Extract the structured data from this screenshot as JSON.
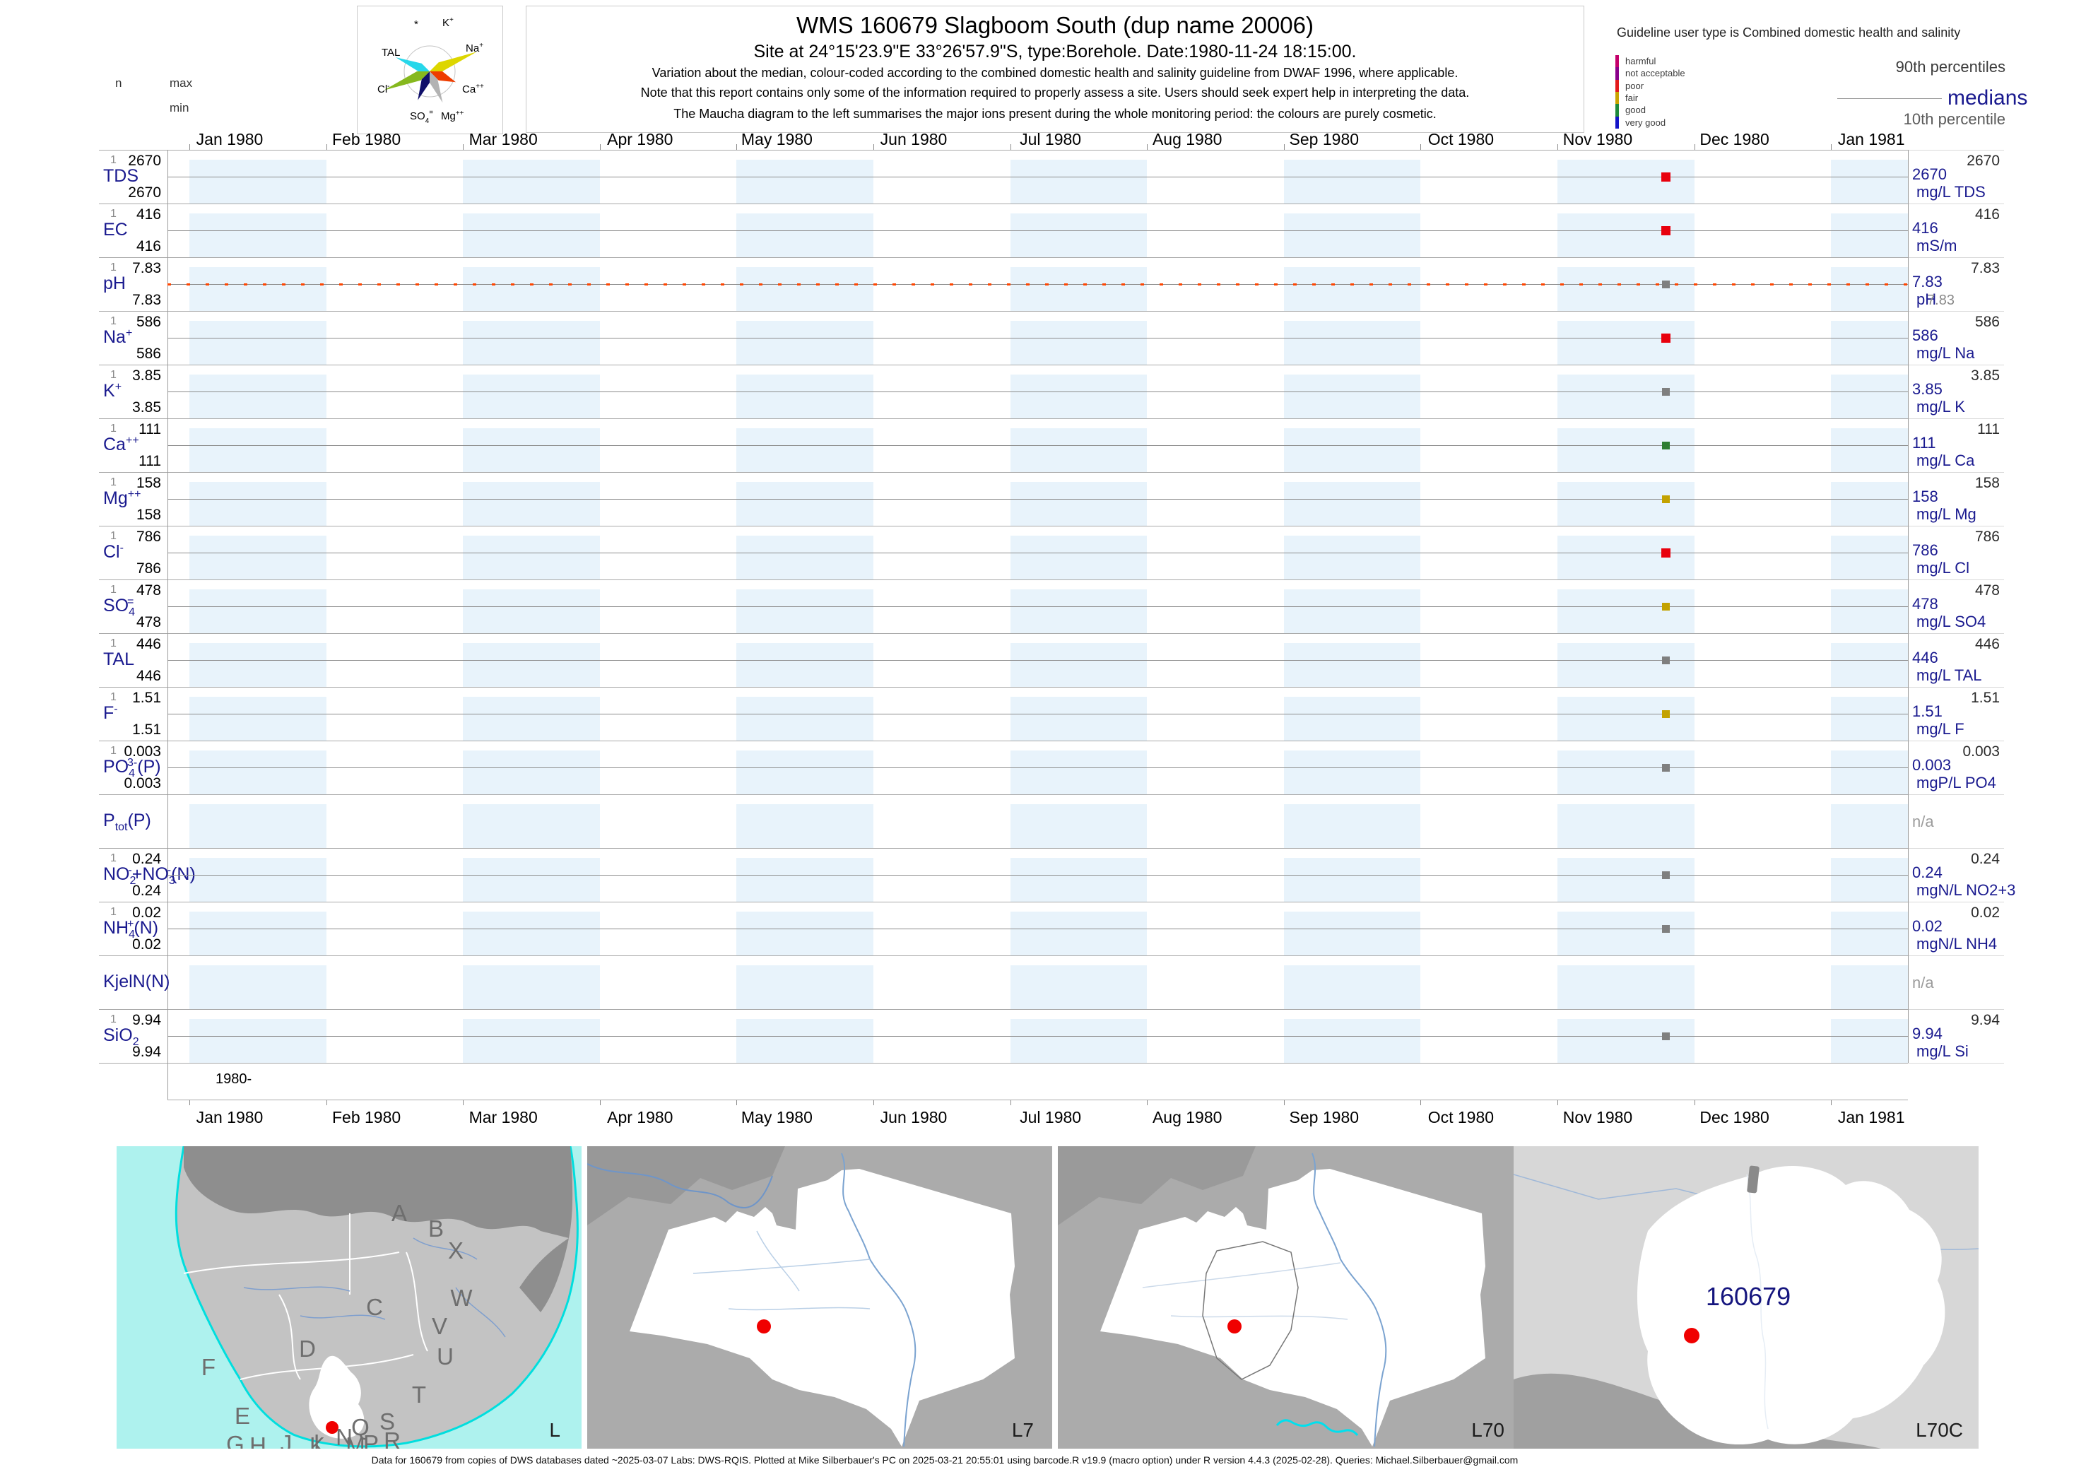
{
  "header": {
    "title": "WMS 160679  Slagboom South (dup name 20006)",
    "subtitle": "Site at 24°15'23.9\"E 33°26'57.9\"S, type:Borehole. Date:1980-11-24 18:15:00.",
    "note1": "Variation about the median,  colour-coded according to the combined domestic health and salinity guideline from DWAF 1996, where applicable.",
    "note2": "Note that this report contains only some of the information required to properly assess a site. Users should seek expert help in interpreting the data.",
    "note3": "The Maucha diagram to the left summarises the major ions present during the whole monitoring period: the colours are purely cosmetic.",
    "col_n": "n",
    "col_max": "max",
    "col_min": "min",
    "maucha_labels": {
      "star": "*",
      "k": "K+",
      "tal": "TAL",
      "na": "Na+",
      "cl": "Cl-",
      "ca": "Ca++",
      "so4": "SO4=",
      "mg": "Mg++"
    },
    "guideline": {
      "heading": "Guideline user type is Combined domestic health and salinity",
      "classes": [
        {
          "label": "harmful",
          "color": "#c4006b"
        },
        {
          "label": "not acceptable",
          "color": "#8a008a"
        },
        {
          "label": "poor",
          "color": "#e31a1c"
        },
        {
          "label": "fair",
          "color": "#c9a400"
        },
        {
          "label": "good",
          "color": "#1e8b3c"
        },
        {
          "label": "very good",
          "color": "#1414c8"
        }
      ],
      "p90_label": "90th percentiles",
      "median_label": "medians",
      "p10_label": "10th percentile"
    }
  },
  "axis": {
    "months": [
      "Jan 1980",
      "Feb 1980",
      "Mar 1980",
      "Apr 1980",
      "May 1980",
      "Jun 1980",
      "Jul 1980",
      "Aug 1980",
      "Sep 1980",
      "Oct 1980",
      "Nov 1980",
      "Dec 1980",
      "Jan 1981"
    ],
    "year_label": "1980-"
  },
  "rows": [
    {
      "name": [
        [
          "TDS",
          "b"
        ]
      ],
      "n": "1",
      "max": "2670",
      "min": "2670",
      "p90": "2670",
      "median": "2670",
      "unit": "mg/L TDS",
      "p10": "",
      "na": false,
      "marker": "#e8000d",
      "big": true,
      "ph": false
    },
    {
      "name": [
        [
          "EC",
          "b"
        ]
      ],
      "n": "1",
      "max": "416",
      "min": "416",
      "p90": "416",
      "median": "416",
      "unit": "mS/m",
      "p10": "",
      "na": false,
      "marker": "#e8000d",
      "big": true,
      "ph": false
    },
    {
      "name": [
        [
          "pH",
          "b"
        ]
      ],
      "n": "1",
      "max": "7.83",
      "min": "7.83",
      "p90": "7.83",
      "median": "7.83",
      "unit": "pH",
      "p10": "7.83",
      "na": false,
      "marker": "#7f7f7f",
      "big": false,
      "ph": true
    },
    {
      "name": [
        [
          "Na",
          "b"
        ],
        [
          "+",
          "u"
        ]
      ],
      "n": "1",
      "max": "586",
      "min": "586",
      "p90": "586",
      "median": "586",
      "unit": "mg/L Na",
      "p10": "",
      "na": false,
      "marker": "#e8000d",
      "big": true,
      "ph": false
    },
    {
      "name": [
        [
          "K",
          "b"
        ],
        [
          "+",
          "u"
        ]
      ],
      "n": "1",
      "max": "3.85",
      "min": "3.85",
      "p90": "3.85",
      "median": "3.85",
      "unit": "mg/L K",
      "p10": "",
      "na": false,
      "marker": "#7f7f7f",
      "big": false,
      "ph": false
    },
    {
      "name": [
        [
          "Ca",
          "b"
        ],
        [
          "++",
          "u"
        ]
      ],
      "n": "1",
      "max": "111",
      "min": "111",
      "p90": "111",
      "median": "111",
      "unit": "mg/L Ca",
      "p10": "",
      "na": false,
      "marker": "#2e7d32",
      "big": false,
      "ph": false
    },
    {
      "name": [
        [
          "Mg",
          "b"
        ],
        [
          "++",
          "u"
        ]
      ],
      "n": "1",
      "max": "158",
      "min": "158",
      "p90": "158",
      "median": "158",
      "unit": "mg/L Mg",
      "p10": "",
      "na": false,
      "marker": "#c3a200",
      "big": false,
      "ph": false
    },
    {
      "name": [
        [
          "Cl",
          "b"
        ],
        [
          "-",
          "u"
        ]
      ],
      "n": "1",
      "max": "786",
      "min": "786",
      "p90": "786",
      "median": "786",
      "unit": "mg/L Cl",
      "p10": "",
      "na": false,
      "marker": "#e8000d",
      "big": true,
      "ph": false
    },
    {
      "name": [
        [
          "SO",
          "b"
        ],
        [
          "4",
          "d"
        ],
        [
          "=",
          "o"
        ]
      ],
      "n": "1",
      "max": "478",
      "min": "478",
      "p90": "478",
      "median": "478",
      "unit": "mg/L SO4",
      "p10": "",
      "na": false,
      "marker": "#c3a200",
      "big": false,
      "ph": false
    },
    {
      "name": [
        [
          "TAL",
          "b"
        ]
      ],
      "n": "1",
      "max": "446",
      "min": "446",
      "p90": "446",
      "median": "446",
      "unit": "mg/L TAL",
      "p10": "",
      "na": false,
      "marker": "#7f7f7f",
      "big": false,
      "ph": false
    },
    {
      "name": [
        [
          "F",
          "b"
        ],
        [
          "-",
          "u"
        ]
      ],
      "n": "1",
      "max": "1.51",
      "min": "1.51",
      "p90": "1.51",
      "median": "1.51",
      "unit": "mg/L F",
      "p10": "",
      "na": false,
      "marker": "#c3a200",
      "big": false,
      "ph": false
    },
    {
      "name": [
        [
          "PO",
          "b"
        ],
        [
          "4",
          "d"
        ],
        [
          "3-",
          "o"
        ],
        [
          "(P)",
          "b"
        ]
      ],
      "n": "1",
      "max": "0.003",
      "min": "0.003",
      "p90": "0.003",
      "median": "0.003",
      "unit": "mgP/L PO4",
      "p10": "",
      "na": false,
      "marker": "#7f7f7f",
      "big": false,
      "ph": false
    },
    {
      "name": [
        [
          "P",
          "b"
        ],
        [
          "tot",
          "d"
        ],
        [
          "(P)",
          "b"
        ]
      ],
      "n": "",
      "max": "",
      "min": "",
      "p90": "",
      "median": "",
      "unit": "",
      "p10": "",
      "na": true,
      "marker": "",
      "big": false,
      "ph": false
    },
    {
      "name": [
        [
          "NO",
          "b"
        ],
        [
          "2",
          "d"
        ],
        [
          "-",
          "o"
        ],
        [
          "+NO",
          "b"
        ],
        [
          "3",
          "d"
        ],
        [
          "-",
          "o"
        ],
        [
          "(N)",
          "b"
        ]
      ],
      "n": "1",
      "max": "0.24",
      "min": "0.24",
      "p90": "0.24",
      "median": "0.24",
      "unit": "mgN/L NO2+3",
      "p10": "",
      "na": false,
      "marker": "#7f7f7f",
      "big": false,
      "ph": false
    },
    {
      "name": [
        [
          "NH",
          "b"
        ],
        [
          "4",
          "d"
        ],
        [
          "+",
          "o"
        ],
        [
          "(N)",
          "b"
        ]
      ],
      "n": "1",
      "max": "0.02",
      "min": "0.02",
      "p90": "0.02",
      "median": "0.02",
      "unit": "mgN/L NH4",
      "p10": "",
      "na": false,
      "marker": "#7f7f7f",
      "big": false,
      "ph": false
    },
    {
      "name": [
        [
          "KjelN(N)",
          "b"
        ]
      ],
      "n": "",
      "max": "",
      "min": "",
      "p90": "",
      "median": "",
      "unit": "",
      "p10": "",
      "na": true,
      "marker": "",
      "big": false,
      "ph": false
    },
    {
      "name": [
        [
          "SiO",
          "b"
        ],
        [
          "2",
          "d"
        ]
      ],
      "n": "1",
      "max": "9.94",
      "min": "9.94",
      "p90": "9.94",
      "median": "9.94",
      "unit": "mg/L Si",
      "p10": "",
      "na": false,
      "marker": "#7f7f7f",
      "big": false,
      "ph": false
    }
  ],
  "na_text": "n/a",
  "maps": [
    {
      "label": "L",
      "letters": [
        "A",
        "B",
        "X",
        "C",
        "W",
        "V",
        "U",
        "D",
        "F",
        "T",
        "E",
        "S",
        "Q",
        "R",
        "N",
        "L",
        "M",
        "P",
        "K",
        "J",
        "G",
        "H"
      ]
    },
    {
      "label": "L7"
    },
    {
      "label": "L70"
    },
    {
      "label": "L70C",
      "site_label": "160679"
    }
  ],
  "footer": {
    "caption": "Data for 160679 from copies of DWS databases dated ~2025-03-07 Labs: DWS-RQIS. Plotted at Mike Silberbauer's PC on 2025-03-21 20:55:01 using barcode.R v19.9 (macro option) under R version 4.4.3 (2025-02-28). Queries: Michael.Silberbauer@gmail.com"
  },
  "chart_data": {
    "type": "scatter",
    "title": "WMS 160679 Slagboom South (dup name 20006)",
    "site_coordinates": "24°15'23.9\"E 33°26'57.9\"S",
    "site_type": "Borehole",
    "sample_datetime": "1980-11-24 18:15:00",
    "x_axis": {
      "start": "Jan 1980",
      "end": "Jan 1981",
      "tick_labels": [
        "Jan 1980",
        "Feb 1980",
        "Mar 1980",
        "Apr 1980",
        "May 1980",
        "Jun 1980",
        "Jul 1980",
        "Aug 1980",
        "Sep 1980",
        "Oct 1980",
        "Nov 1980",
        "Dec 1980",
        "Jan 1981"
      ]
    },
    "legend": {
      "p90": "90th percentiles",
      "median": "medians",
      "p10": "10th percentile"
    },
    "series": [
      {
        "parameter": "TDS",
        "n": 1,
        "min": 2670,
        "max": 2670,
        "median": 2670,
        "p90": 2670,
        "p10": 2670,
        "unit": "mg/L TDS",
        "sample_x": "1980-11-24",
        "marker_color": "#e8000d"
      },
      {
        "parameter": "EC",
        "n": 1,
        "min": 416,
        "max": 416,
        "median": 416,
        "p90": 416,
        "p10": 416,
        "unit": "mS/m",
        "sample_x": "1980-11-24",
        "marker_color": "#e8000d"
      },
      {
        "parameter": "pH",
        "n": 1,
        "min": 7.83,
        "max": 7.83,
        "median": 7.83,
        "p90": 7.83,
        "p10": 7.83,
        "unit": "pH",
        "sample_x": "1980-11-24",
        "marker_color": "#7f7f7f"
      },
      {
        "parameter": "Na+",
        "n": 1,
        "min": 586,
        "max": 586,
        "median": 586,
        "p90": 586,
        "p10": 586,
        "unit": "mg/L Na",
        "sample_x": "1980-11-24",
        "marker_color": "#e8000d"
      },
      {
        "parameter": "K+",
        "n": 1,
        "min": 3.85,
        "max": 3.85,
        "median": 3.85,
        "p90": 3.85,
        "p10": 3.85,
        "unit": "mg/L K",
        "sample_x": "1980-11-24",
        "marker_color": "#7f7f7f"
      },
      {
        "parameter": "Ca++",
        "n": 1,
        "min": 111,
        "max": 111,
        "median": 111,
        "p90": 111,
        "p10": 111,
        "unit": "mg/L Ca",
        "sample_x": "1980-11-24",
        "marker_color": "#2e7d32"
      },
      {
        "parameter": "Mg++",
        "n": 1,
        "min": 158,
        "max": 158,
        "median": 158,
        "p90": 158,
        "p10": 158,
        "unit": "mg/L Mg",
        "sample_x": "1980-11-24",
        "marker_color": "#c3a200"
      },
      {
        "parameter": "Cl-",
        "n": 1,
        "min": 786,
        "max": 786,
        "median": 786,
        "p90": 786,
        "p10": 786,
        "unit": "mg/L Cl",
        "sample_x": "1980-11-24",
        "marker_color": "#e8000d"
      },
      {
        "parameter": "SO4=",
        "n": 1,
        "min": 478,
        "max": 478,
        "median": 478,
        "p90": 478,
        "p10": 478,
        "unit": "mg/L SO4",
        "sample_x": "1980-11-24",
        "marker_color": "#c3a200"
      },
      {
        "parameter": "TAL",
        "n": 1,
        "min": 446,
        "max": 446,
        "median": 446,
        "p90": 446,
        "p10": 446,
        "unit": "mg/L TAL",
        "sample_x": "1980-11-24",
        "marker_color": "#7f7f7f"
      },
      {
        "parameter": "F-",
        "n": 1,
        "min": 1.51,
        "max": 1.51,
        "median": 1.51,
        "p90": 1.51,
        "p10": 1.51,
        "unit": "mg/L F",
        "sample_x": "1980-11-24",
        "marker_color": "#c3a200"
      },
      {
        "parameter": "PO43-(P)",
        "n": 1,
        "min": 0.003,
        "max": 0.003,
        "median": 0.003,
        "p90": 0.003,
        "p10": 0.003,
        "unit": "mgP/L PO4",
        "sample_x": "1980-11-24",
        "marker_color": "#7f7f7f"
      },
      {
        "parameter": "Ptot(P)",
        "n": 0,
        "values": "n/a"
      },
      {
        "parameter": "NO2-+NO3-(N)",
        "n": 1,
        "min": 0.24,
        "max": 0.24,
        "median": 0.24,
        "p90": 0.24,
        "p10": 0.24,
        "unit": "mgN/L NO2+3",
        "sample_x": "1980-11-24",
        "marker_color": "#7f7f7f"
      },
      {
        "parameter": "NH4+(N)",
        "n": 1,
        "min": 0.02,
        "max": 0.02,
        "median": 0.02,
        "p90": 0.02,
        "p10": 0.02,
        "unit": "mgN/L NH4",
        "sample_x": "1980-11-24",
        "marker_color": "#7f7f7f"
      },
      {
        "parameter": "KjelN(N)",
        "n": 0,
        "values": "n/a"
      },
      {
        "parameter": "SiO2",
        "n": 1,
        "min": 9.94,
        "max": 9.94,
        "median": 9.94,
        "p90": 9.94,
        "p10": 9.94,
        "unit": "mg/L Si",
        "sample_x": "1980-11-24",
        "marker_color": "#7f7f7f"
      }
    ]
  }
}
